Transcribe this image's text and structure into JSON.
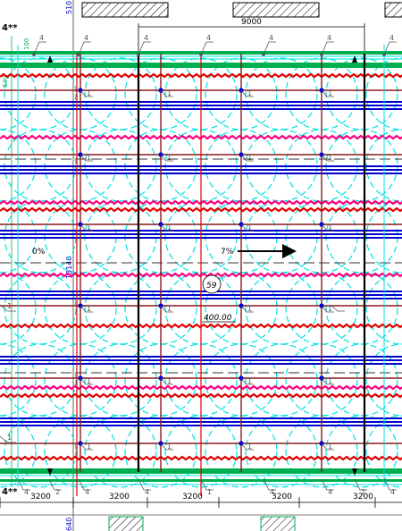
{
  "labels": {
    "mark_4": "4",
    "mark_1": "1",
    "mark_2": "2",
    "mark_4ss": "4**",
    "slope_left": "0%",
    "slope_right": "7%",
    "circle_tag": "59",
    "elevation": "400.00",
    "top_span": "9000",
    "bay": "3200",
    "side_top": "510",
    "side_mid": "13140",
    "side_bottom": "640",
    "side_small_top": "100",
    "side_small_bottom": "640"
  },
  "colors": {
    "steel_blue": "#0000cc",
    "rebar_red": "#e00000",
    "rebar_pink": "#ff0080",
    "grid_cyan": "#00e0e0",
    "edge_green": "#00b050",
    "frame_black": "#000000",
    "beam_dark_red": "#8b1a1a",
    "leader_gray": "#555555"
  },
  "icons": {
    "slope_arrow": "arrow-right-icon",
    "support": "support-triangle-icon"
  }
}
